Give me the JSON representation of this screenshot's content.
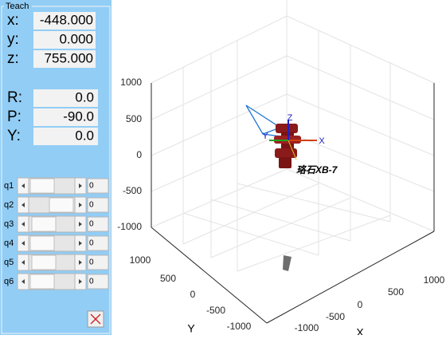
{
  "panel": {
    "title": "Teach",
    "position": [
      {
        "label": "x:",
        "value": "-448.000"
      },
      {
        "label": "y:",
        "value": "0.000"
      },
      {
        "label": "z:",
        "value": "755.000"
      }
    ],
    "orientation": [
      {
        "label": "R:",
        "value": "0.0"
      },
      {
        "label": "P:",
        "value": "-90.0"
      },
      {
        "label": "Y:",
        "value": "0.0"
      }
    ],
    "joints": [
      {
        "label": "q1",
        "value": "0"
      },
      {
        "label": "q2",
        "value": "0"
      },
      {
        "label": "q3",
        "value": "0"
      },
      {
        "label": "q4",
        "value": "0"
      },
      {
        "label": "q5",
        "value": "0"
      },
      {
        "label": "q6",
        "value": "0"
      }
    ]
  },
  "plot": {
    "z_ticks": [
      "1000",
      "500",
      "0",
      "-500",
      "-1000"
    ],
    "y_ticks": [
      "1000",
      "500",
      "0",
      "-500",
      "-1000"
    ],
    "x_ticks": [
      "-1000",
      "-500",
      "0",
      "500",
      "1000"
    ],
    "y_label": "Y",
    "x_label": "X",
    "robot_name": "珞石XB-7",
    "frame_labels": [
      "Z",
      "X",
      "Y"
    ]
  }
}
